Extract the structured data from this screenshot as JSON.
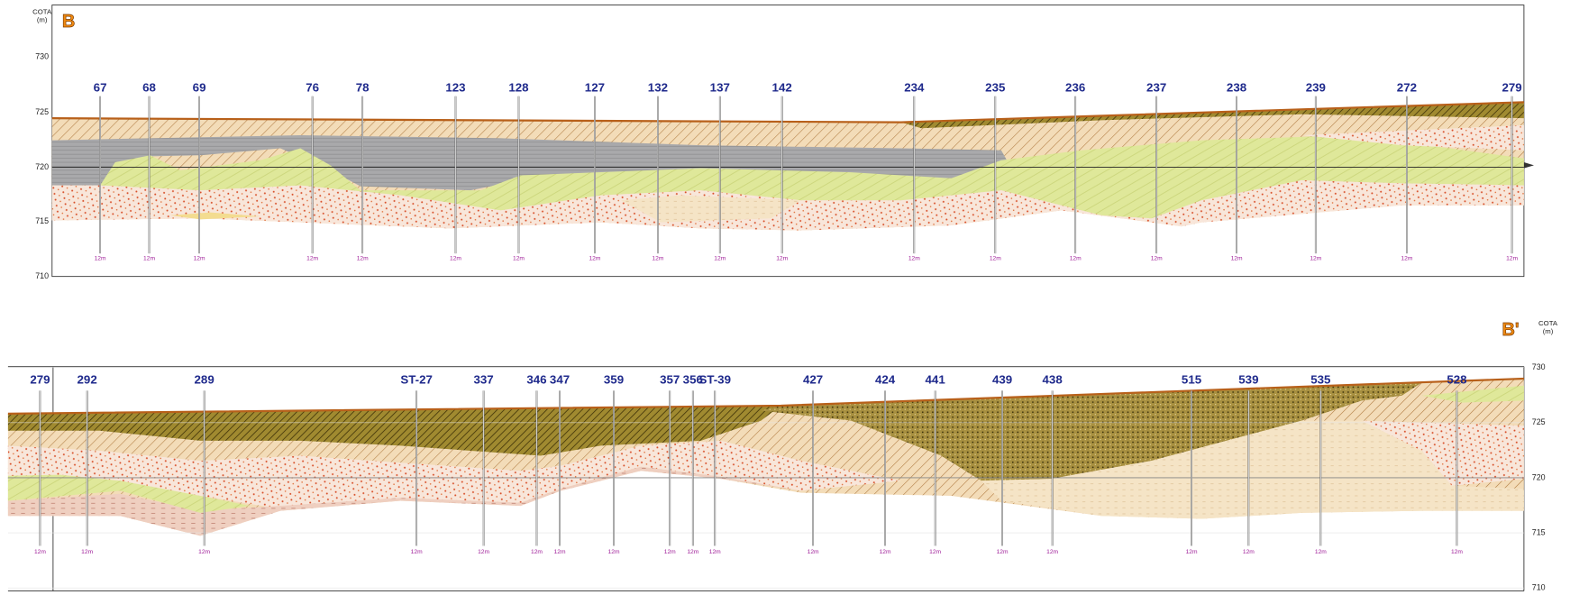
{
  "sections": [
    {
      "marker": "B",
      "axis": {
        "title": "COTA",
        "unit": "(m)",
        "ticks": [
          730,
          725,
          720,
          715,
          710
        ]
      },
      "boreholes": [
        {
          "id": "67",
          "depth": "12m"
        },
        {
          "id": "68",
          "depth": "12m"
        },
        {
          "id": "69",
          "depth": "12m"
        },
        {
          "id": "76",
          "depth": "12m"
        },
        {
          "id": "78",
          "depth": "12m"
        },
        {
          "id": "123",
          "depth": "12m"
        },
        {
          "id": "128",
          "depth": "12m"
        },
        {
          "id": "127",
          "depth": "12m"
        },
        {
          "id": "132",
          "depth": "12m"
        },
        {
          "id": "137",
          "depth": "12m"
        },
        {
          "id": "142",
          "depth": "12m"
        },
        {
          "id": "234",
          "depth": "12m"
        },
        {
          "id": "235",
          "depth": "12m"
        },
        {
          "id": "236",
          "depth": "12m"
        },
        {
          "id": "237",
          "depth": "12m"
        },
        {
          "id": "238",
          "depth": "12m"
        },
        {
          "id": "239",
          "depth": "12m"
        },
        {
          "id": "272",
          "depth": "12m"
        },
        {
          "id": "279",
          "depth": "12m"
        }
      ]
    },
    {
      "marker": "B'",
      "axis": {
        "title": "COTA",
        "unit": "(m)",
        "ticks": [
          730,
          725,
          720,
          715,
          710
        ]
      },
      "boreholes": [
        {
          "id": "279",
          "depth": "12m"
        },
        {
          "id": "292",
          "depth": "12m"
        },
        {
          "id": "289",
          "depth": "12m"
        },
        {
          "id": "ST-27",
          "depth": "12m"
        },
        {
          "id": "337",
          "depth": "12m"
        },
        {
          "id": "346",
          "depth": "12m"
        },
        {
          "id": "347",
          "depth": "12m"
        },
        {
          "id": "359",
          "depth": "12m"
        },
        {
          "id": "357",
          "depth": "12m"
        },
        {
          "id": "356",
          "depth": "12m"
        },
        {
          "id": "ST-39",
          "depth": "12m"
        },
        {
          "id": "427",
          "depth": "12m"
        },
        {
          "id": "424",
          "depth": "12m"
        },
        {
          "id": "441",
          "depth": "12m"
        },
        {
          "id": "439",
          "depth": "12m"
        },
        {
          "id": "438",
          "depth": "12m"
        },
        {
          "id": "515",
          "depth": "12m"
        },
        {
          "id": "539",
          "depth": "12m"
        },
        {
          "id": "535",
          "depth": "12m"
        },
        {
          "id": "528",
          "depth": "12m"
        }
      ]
    }
  ]
}
